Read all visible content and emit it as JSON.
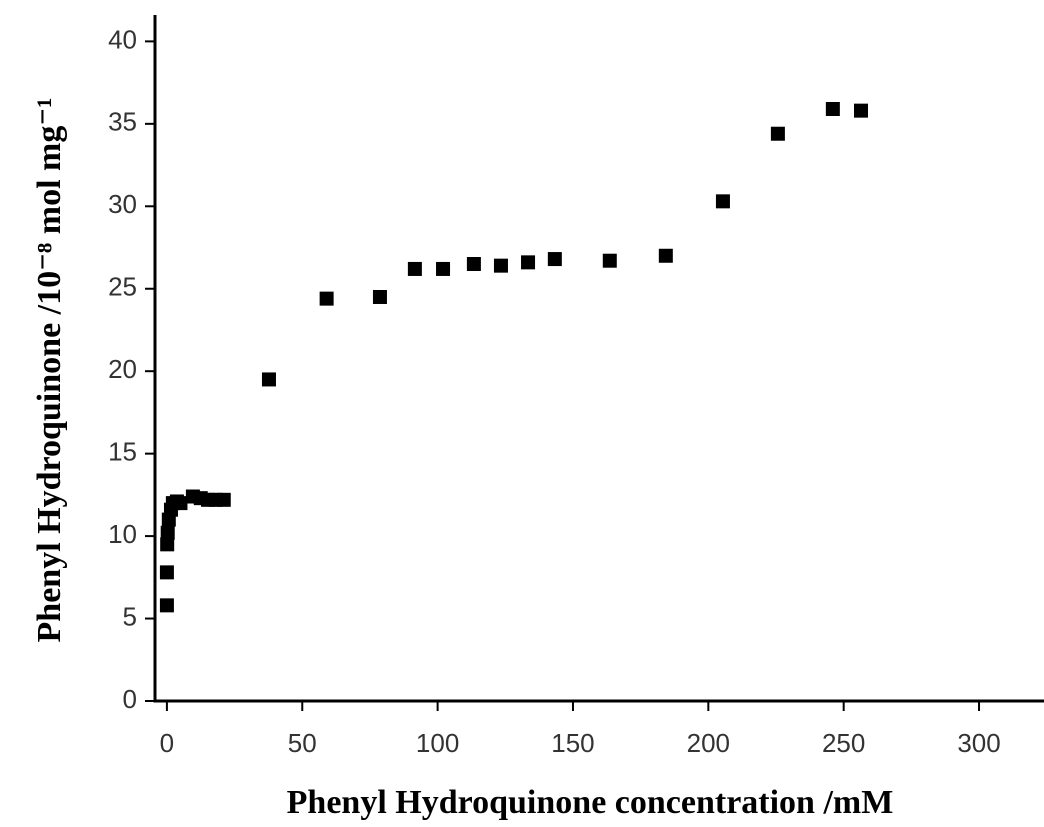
{
  "chart_data": {
    "type": "scatter",
    "xlabel": "Phenyl Hydroquinone concentration /mM",
    "ylabel": "Phenyl Hydroquinone /10⁻⁸ mol mg⁻¹",
    "x": [
      0,
      0,
      0.1,
      0.3,
      0.7,
      1.5,
      2.2,
      3.7,
      5,
      9.6,
      12.5,
      15.2,
      18,
      21,
      37.7,
      59,
      78.7,
      91.6,
      102,
      113.4,
      123.4,
      133.4,
      143.3,
      163.6,
      184.3,
      205.4,
      225.7,
      246,
      256.4
    ],
    "series": [
      {
        "color": "#000000",
        "values": [
          5.8,
          7.8,
          9.5,
          10.2,
          11,
          11.6,
          12,
          12.1,
          12,
          12.4,
          12.3,
          12.2,
          12.2,
          12.2,
          19.5,
          24.4,
          24.5,
          26.2,
          26.2,
          26.5,
          26.4,
          26.6,
          26.8,
          26.7,
          27,
          30.3,
          34.4,
          35.9,
          35.8
        ]
      }
    ],
    "xlim": [
      -4.4,
      324
    ],
    "ylim": [
      0,
      41.6
    ],
    "xticks": [
      0,
      50,
      100,
      150,
      200,
      250,
      300
    ],
    "yticks": [
      0,
      5,
      10,
      15,
      20,
      25,
      30,
      35,
      40
    ],
    "grid": false
  }
}
